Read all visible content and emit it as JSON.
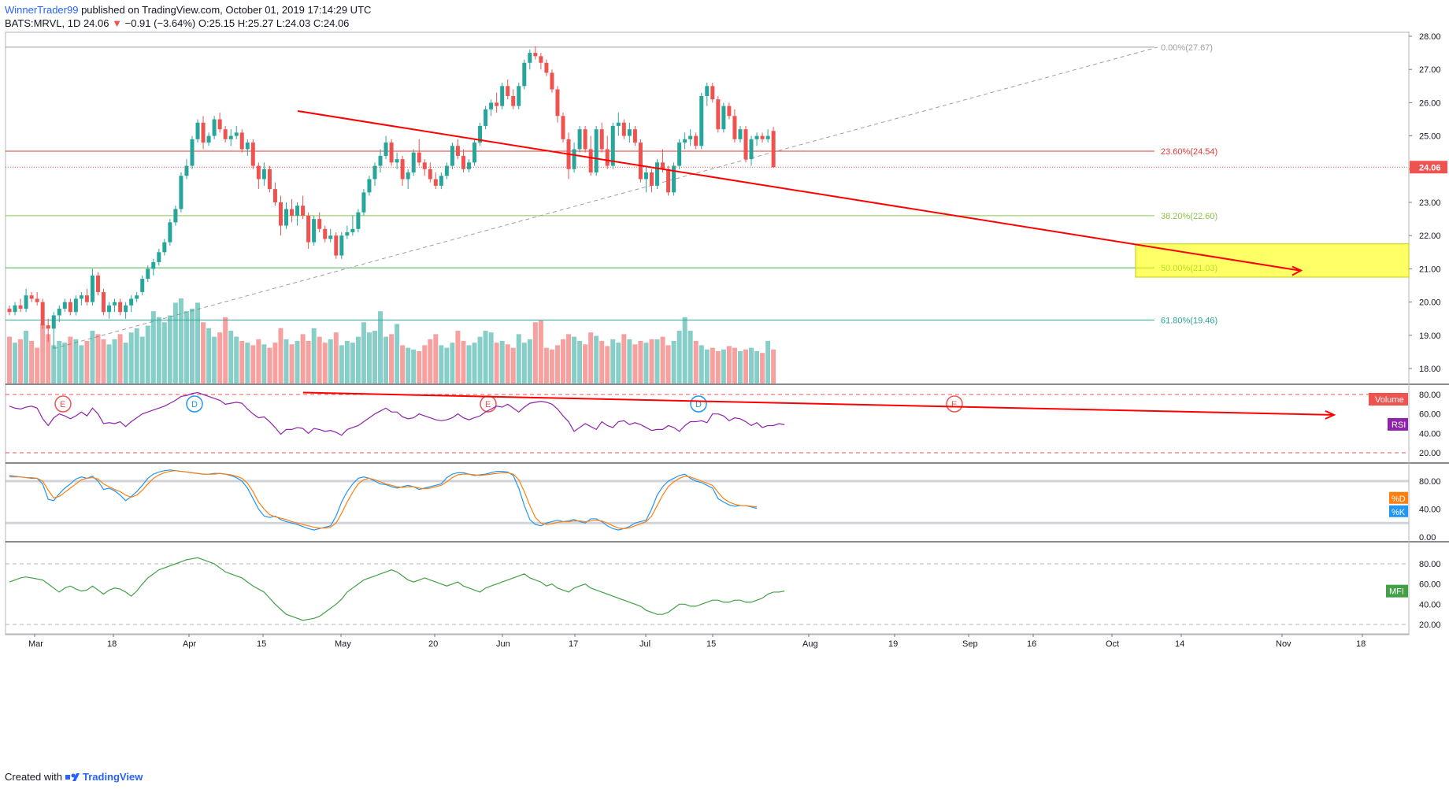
{
  "header": {
    "author": "WinnerTrader99",
    "published": "published on TradingView.com, October 01, 2019 17:14:29 UTC",
    "symbol": "BATS:MRVL, 1D",
    "last": "24.06",
    "change": "−0.91 (−3.64%)",
    "ohlc": "O:25.15 H:25.27 L:24.03 C:24.06"
  },
  "footer": {
    "created_with": "Created with",
    "brand": "TradingView"
  },
  "price_axis": {
    "ticks": [
      "28.00",
      "27.00",
      "26.00",
      "25.00",
      "24.00",
      "23.00",
      "22.00",
      "21.00",
      "20.00",
      "19.00",
      "18.00"
    ],
    "current_label": "24.06"
  },
  "fib_levels": [
    {
      "label": "0.00%(27.67)",
      "price": 27.67,
      "color": "#9e9e9e"
    },
    {
      "label": "23.60%(24.54)",
      "price": 24.54,
      "color": "#e53935"
    },
    {
      "label": "38.20%(22.60)",
      "price": 22.6,
      "color": "#8bc34a"
    },
    {
      "label": "50.00%(21.03)",
      "price": 21.03,
      "color": "#4caf50"
    },
    {
      "label": "61.80%(19.46)",
      "price": 19.46,
      "color": "#26a69a"
    }
  ],
  "indicators": {
    "volume_label": "Volume",
    "rsi_label": "RSI",
    "stoch_d_label": "%D",
    "stoch_k_label": "%K",
    "mfi_label": "MFI",
    "rsi_ticks": [
      "80.00",
      "60.00",
      "40.00",
      "20.00"
    ],
    "stoch_ticks": [
      "80.00",
      "40.00",
      "0.00"
    ],
    "mfi_ticks": [
      "80.00",
      "60.00",
      "40.00",
      "20.00"
    ]
  },
  "time_axis": [
    "Mar",
    "18",
    "Apr",
    "15",
    "May",
    "20",
    "Jun",
    "17",
    "Jul",
    "15",
    "Aug",
    "19",
    "Sep",
    "16",
    "Oct",
    "14",
    "Nov",
    "18"
  ],
  "event_markers": [
    "E",
    "D",
    "E",
    "D",
    "E"
  ],
  "colors": {
    "up": "#26a69a",
    "down": "#ef5350",
    "rsi": "#8e24aa",
    "stoch_k": "#2196f3",
    "stoch_d": "#ff7f0e",
    "mfi": "#43a047",
    "trendline": "#ff0000",
    "target_box": "#ffff00"
  },
  "chart_data": {
    "type": "candlestick",
    "symbol": "BATS:MRVL",
    "interval": "1D",
    "ylim": [
      17.6,
      28.2
    ],
    "candles_ohlc": [
      [
        19.8,
        19.9,
        19.6,
        19.7
      ],
      [
        19.7,
        20.0,
        19.6,
        19.9
      ],
      [
        19.9,
        20.1,
        19.7,
        19.8
      ],
      [
        19.8,
        20.4,
        19.7,
        20.2
      ],
      [
        20.2,
        20.3,
        20.0,
        20.1
      ],
      [
        20.1,
        20.3,
        19.9,
        20.0
      ],
      [
        20.0,
        20.1,
        19.2,
        19.3
      ],
      [
        19.3,
        19.5,
        18.8,
        19.2
      ],
      [
        19.2,
        19.7,
        18.6,
        19.6
      ],
      [
        19.6,
        19.9,
        19.4,
        19.8
      ],
      [
        19.8,
        20.1,
        19.7,
        20.0
      ],
      [
        20.0,
        20.1,
        19.6,
        19.7
      ],
      [
        19.7,
        20.2,
        19.6,
        20.1
      ],
      [
        20.1,
        20.3,
        19.9,
        20.2
      ],
      [
        20.2,
        20.4,
        19.9,
        20.0
      ],
      [
        20.0,
        21.0,
        19.9,
        20.8
      ],
      [
        20.8,
        20.9,
        20.2,
        20.3
      ],
      [
        20.3,
        20.4,
        19.6,
        19.7
      ],
      [
        19.7,
        20.0,
        19.5,
        19.9
      ],
      [
        19.9,
        20.1,
        19.7,
        20.0
      ],
      [
        20.0,
        20.1,
        19.6,
        19.7
      ],
      [
        19.7,
        20.0,
        19.5,
        19.9
      ],
      [
        19.9,
        20.2,
        19.7,
        20.1
      ],
      [
        20.1,
        20.3,
        20.0,
        20.2
      ],
      [
        20.3,
        20.8,
        20.2,
        20.7
      ],
      [
        20.7,
        21.1,
        20.6,
        21.0
      ],
      [
        21.0,
        21.3,
        20.8,
        21.2
      ],
      [
        21.2,
        21.6,
        21.1,
        21.5
      ],
      [
        21.5,
        21.9,
        21.4,
        21.8
      ],
      [
        21.8,
        22.5,
        21.7,
        22.4
      ],
      [
        22.4,
        22.9,
        22.3,
        22.8
      ],
      [
        22.8,
        23.9,
        22.7,
        23.8
      ],
      [
        23.8,
        24.3,
        23.7,
        24.1
      ],
      [
        24.1,
        25.0,
        24.0,
        24.9
      ],
      [
        24.9,
        25.5,
        24.8,
        25.4
      ],
      [
        25.4,
        25.6,
        24.6,
        24.8
      ],
      [
        24.8,
        25.1,
        24.7,
        25.0
      ],
      [
        25.0,
        25.6,
        24.9,
        25.5
      ],
      [
        25.5,
        25.7,
        25.1,
        25.2
      ],
      [
        25.2,
        25.3,
        24.8,
        24.9
      ],
      [
        24.9,
        25.2,
        24.7,
        25.0
      ],
      [
        25.0,
        25.3,
        24.9,
        25.1
      ],
      [
        25.1,
        25.2,
        24.5,
        24.6
      ],
      [
        24.6,
        24.9,
        24.4,
        24.8
      ],
      [
        24.8,
        24.9,
        24.0,
        24.1
      ],
      [
        24.1,
        24.2,
        23.4,
        23.7
      ],
      [
        23.7,
        24.2,
        23.5,
        24.0
      ],
      [
        24.0,
        24.1,
        23.3,
        23.4
      ],
      [
        23.4,
        23.6,
        22.9,
        23.0
      ],
      [
        23.0,
        23.2,
        22.0,
        22.3
      ],
      [
        22.3,
        23.0,
        22.2,
        22.8
      ],
      [
        22.8,
        23.1,
        22.4,
        22.6
      ],
      [
        22.6,
        23.0,
        22.3,
        22.9
      ],
      [
        22.9,
        23.2,
        22.5,
        22.6
      ],
      [
        22.6,
        22.7,
        21.6,
        21.8
      ],
      [
        21.8,
        22.6,
        21.7,
        22.5
      ],
      [
        22.5,
        22.7,
        22.1,
        22.2
      ],
      [
        22.2,
        22.3,
        21.8,
        21.9
      ],
      [
        21.9,
        22.2,
        21.8,
        22.0
      ],
      [
        22.0,
        22.1,
        21.3,
        21.4
      ],
      [
        21.4,
        22.1,
        21.3,
        22.0
      ],
      [
        22.0,
        22.3,
        21.9,
        22.1
      ],
      [
        22.1,
        22.6,
        22.0,
        22.2
      ],
      [
        22.2,
        22.8,
        22.1,
        22.7
      ],
      [
        22.7,
        23.4,
        22.6,
        23.3
      ],
      [
        23.3,
        23.8,
        23.2,
        23.7
      ],
      [
        23.7,
        24.2,
        23.5,
        24.1
      ],
      [
        24.1,
        24.6,
        23.9,
        24.4
      ],
      [
        24.4,
        25.0,
        24.3,
        24.8
      ],
      [
        24.8,
        24.9,
        24.1,
        24.2
      ],
      [
        24.2,
        24.5,
        24.0,
        24.3
      ],
      [
        24.3,
        24.4,
        23.5,
        23.7
      ],
      [
        23.7,
        24.0,
        23.4,
        23.9
      ],
      [
        23.9,
        24.6,
        23.8,
        24.5
      ],
      [
        24.5,
        24.9,
        24.1,
        24.2
      ],
      [
        24.2,
        24.3,
        23.8,
        24.0
      ],
      [
        24.0,
        24.2,
        23.6,
        23.7
      ],
      [
        23.7,
        23.9,
        23.4,
        23.5
      ],
      [
        23.5,
        23.9,
        23.4,
        23.8
      ],
      [
        23.8,
        24.2,
        23.7,
        24.1
      ],
      [
        24.1,
        24.8,
        24.0,
        24.7
      ],
      [
        24.7,
        24.9,
        24.3,
        24.4
      ],
      [
        24.4,
        24.6,
        23.9,
        24.0
      ],
      [
        24.0,
        24.3,
        23.9,
        24.2
      ],
      [
        24.2,
        24.9,
        24.1,
        24.8
      ],
      [
        24.8,
        25.4,
        24.7,
        25.3
      ],
      [
        25.3,
        25.9,
        25.2,
        25.8
      ],
      [
        25.8,
        26.1,
        25.6,
        26.0
      ],
      [
        26.0,
        26.3,
        25.7,
        25.9
      ],
      [
        25.9,
        26.6,
        25.8,
        26.5
      ],
      [
        26.5,
        26.7,
        26.1,
        26.2
      ],
      [
        26.2,
        26.4,
        25.8,
        25.9
      ],
      [
        25.9,
        26.6,
        25.8,
        26.5
      ],
      [
        26.5,
        27.3,
        26.4,
        27.2
      ],
      [
        27.2,
        27.6,
        27.0,
        27.5
      ],
      [
        27.5,
        27.7,
        27.3,
        27.4
      ],
      [
        27.4,
        27.5,
        27.0,
        27.2
      ],
      [
        27.2,
        27.3,
        26.8,
        26.9
      ],
      [
        26.9,
        27.0,
        26.3,
        26.4
      ],
      [
        26.4,
        26.5,
        25.4,
        25.6
      ],
      [
        25.6,
        25.7,
        24.8,
        24.9
      ],
      [
        24.9,
        25.1,
        23.7,
        24.0
      ],
      [
        24.0,
        24.8,
        23.9,
        24.6
      ],
      [
        24.6,
        25.3,
        24.5,
        25.2
      ],
      [
        25.2,
        25.3,
        24.5,
        24.6
      ],
      [
        24.6,
        25.0,
        23.8,
        23.9
      ],
      [
        23.9,
        25.3,
        23.8,
        25.2
      ],
      [
        25.2,
        25.4,
        24.5,
        24.6
      ],
      [
        24.6,
        25.0,
        24.0,
        24.1
      ],
      [
        24.1,
        25.4,
        24.0,
        25.3
      ],
      [
        25.3,
        25.7,
        25.0,
        25.4
      ],
      [
        25.4,
        25.5,
        24.9,
        25.0
      ],
      [
        25.0,
        25.4,
        24.8,
        25.2
      ],
      [
        25.2,
        25.3,
        24.7,
        24.8
      ],
      [
        24.8,
        24.9,
        23.6,
        23.7
      ],
      [
        23.7,
        24.1,
        23.3,
        23.9
      ],
      [
        23.9,
        24.0,
        23.3,
        23.5
      ],
      [
        23.5,
        24.3,
        23.4,
        24.2
      ],
      [
        24.2,
        24.6,
        23.9,
        24.0
      ],
      [
        24.0,
        24.1,
        23.2,
        23.3
      ],
      [
        23.3,
        24.2,
        23.2,
        24.1
      ],
      [
        24.1,
        24.9,
        24.0,
        24.8
      ],
      [
        24.8,
        25.1,
        24.6,
        24.9
      ],
      [
        24.9,
        25.2,
        24.7,
        25.0
      ],
      [
        25.0,
        25.1,
        24.6,
        24.7
      ],
      [
        24.7,
        26.3,
        24.6,
        26.2
      ],
      [
        26.2,
        26.6,
        25.9,
        26.5
      ],
      [
        26.5,
        26.6,
        26.0,
        26.1
      ],
      [
        26.1,
        26.2,
        25.1,
        25.2
      ],
      [
        25.2,
        26.0,
        25.1,
        25.9
      ],
      [
        25.9,
        26.0,
        25.5,
        25.6
      ],
      [
        25.6,
        25.8,
        24.8,
        24.9
      ],
      [
        24.9,
        25.3,
        24.8,
        25.2
      ],
      [
        25.2,
        25.3,
        24.2,
        24.3
      ],
      [
        24.3,
        25.0,
        24.1,
        24.9
      ],
      [
        24.9,
        25.1,
        24.7,
        25.0
      ],
      [
        25.0,
        25.1,
        24.8,
        24.9
      ],
      [
        24.9,
        25.2,
        24.8,
        25.0
      ],
      [
        25.15,
        25.27,
        24.03,
        24.06
      ]
    ],
    "volume_relative": [
      0.55,
      0.48,
      0.52,
      0.62,
      0.5,
      0.42,
      0.7,
      0.58,
      0.45,
      0.5,
      0.48,
      0.55,
      0.52,
      0.45,
      0.5,
      0.62,
      0.58,
      0.52,
      0.46,
      0.52,
      0.58,
      0.48,
      0.6,
      0.65,
      0.55,
      0.68,
      0.85,
      0.78,
      0.72,
      0.8,
      0.95,
      1.0,
      0.85,
      0.88,
      0.95,
      0.72,
      0.65,
      0.55,
      0.6,
      0.78,
      0.62,
      0.55,
      0.5,
      0.48,
      0.45,
      0.52,
      0.46,
      0.42,
      0.48,
      0.65,
      0.52,
      0.46,
      0.5,
      0.58,
      0.5,
      0.65,
      0.55,
      0.48,
      0.52,
      0.6,
      0.45,
      0.5,
      0.48,
      0.55,
      0.72,
      0.6,
      0.62,
      0.85,
      0.55,
      0.58,
      0.7,
      0.45,
      0.42,
      0.4,
      0.38,
      0.45,
      0.52,
      0.58,
      0.45,
      0.42,
      0.48,
      0.62,
      0.5,
      0.45,
      0.48,
      0.55,
      0.62,
      0.6,
      0.48,
      0.5,
      0.46,
      0.42,
      0.58,
      0.48,
      0.52,
      0.72,
      0.74,
      0.42,
      0.4,
      0.45,
      0.52,
      0.58,
      0.55,
      0.5,
      0.46,
      0.6,
      0.56,
      0.5,
      0.44,
      0.52,
      0.48,
      0.58,
      0.52,
      0.46,
      0.5,
      0.48,
      0.52,
      0.52,
      0.55,
      0.45,
      0.5,
      0.62,
      0.78,
      0.62,
      0.5,
      0.45,
      0.4,
      0.42,
      0.38,
      0.4,
      0.44,
      0.42,
      0.38,
      0.4,
      0.42,
      0.38,
      0.36,
      0.5,
      0.4,
      0.46,
      0.44,
      0.36,
      0.38,
      0.34,
      0.38
    ],
    "rsi": [
      68,
      66,
      65,
      67,
      68,
      66,
      55,
      48,
      56,
      60,
      58,
      55,
      58,
      62,
      58,
      66,
      60,
      50,
      51,
      50,
      52,
      47,
      52,
      56,
      60,
      62,
      64,
      66,
      68,
      71,
      74,
      78,
      79,
      81,
      82,
      80,
      78,
      76,
      74,
      70,
      71,
      72,
      71,
      65,
      60,
      56,
      57,
      52,
      46,
      39,
      44,
      44,
      46,
      45,
      40,
      45,
      44,
      42,
      43,
      41,
      38,
      44,
      46,
      48,
      52,
      56,
      60,
      63,
      66,
      62,
      62,
      57,
      55,
      56,
      60,
      58,
      56,
      54,
      53,
      54,
      56,
      60,
      56,
      54,
      56,
      58,
      62,
      65,
      68,
      67,
      70,
      66,
      62,
      67,
      71,
      72,
      73,
      72,
      70,
      65,
      58,
      52,
      42,
      46,
      50,
      47,
      44,
      52,
      48,
      46,
      52,
      53,
      49,
      51,
      49,
      46,
      43,
      44,
      44,
      48,
      46,
      42,
      48,
      52,
      52,
      53,
      51,
      60,
      60,
      58,
      53,
      56,
      55,
      52,
      48,
      51,
      46,
      48,
      48,
      50,
      49
    ],
    "stoch_k": [
      88,
      87,
      86,
      85,
      84,
      84,
      76,
      54,
      52,
      62,
      70,
      76,
      83,
      86,
      84,
      87,
      80,
      68,
      70,
      66,
      60,
      52,
      58,
      65,
      74,
      84,
      90,
      93,
      95,
      96,
      95,
      94,
      93,
      92,
      91,
      90,
      90,
      91,
      91,
      90,
      88,
      85,
      80,
      70,
      55,
      40,
      30,
      28,
      30,
      25,
      22,
      20,
      18,
      15,
      12,
      10,
      12,
      14,
      16,
      30,
      50,
      65,
      76,
      84,
      86,
      84,
      80,
      76,
      75,
      72,
      70,
      72,
      74,
      72,
      68,
      70,
      72,
      74,
      76,
      85,
      90,
      92,
      92,
      90,
      88,
      89,
      90,
      92,
      94,
      94,
      93,
      88,
      70,
      45,
      25,
      18,
      16,
      20,
      22,
      24,
      22,
      23,
      25,
      22,
      20,
      26,
      26,
      22,
      16,
      12,
      10,
      12,
      15,
      20,
      22,
      24,
      40,
      60,
      72,
      80,
      84,
      88,
      90,
      84,
      80,
      78,
      74,
      70,
      55,
      50,
      46,
      44,
      45,
      45,
      43,
      41
    ],
    "stoch_d": [
      86,
      86,
      86,
      85,
      85,
      84,
      80,
      67,
      56,
      58,
      64,
      70,
      76,
      82,
      84,
      85,
      83,
      76,
      72,
      68,
      65,
      60,
      57,
      60,
      67,
      76,
      84,
      89,
      92,
      94,
      95,
      94,
      93,
      92,
      91,
      90,
      90,
      90,
      91,
      90,
      89,
      87,
      84,
      77,
      65,
      50,
      40,
      32,
      29,
      27,
      25,
      22,
      20,
      18,
      16,
      14,
      13,
      13,
      14,
      20,
      34,
      50,
      64,
      76,
      82,
      84,
      82,
      79,
      76,
      74,
      72,
      71,
      72,
      72,
      70,
      69,
      70,
      72,
      74,
      79,
      85,
      89,
      90,
      90,
      89,
      88,
      89,
      90,
      91,
      92,
      92,
      90,
      82,
      65,
      45,
      28,
      20,
      18,
      19,
      21,
      22,
      22,
      23,
      23,
      22,
      23,
      24,
      23,
      20,
      16,
      13,
      12,
      13,
      16,
      19,
      22,
      30,
      45,
      60,
      72,
      79,
      84,
      87,
      86,
      83,
      80,
      77,
      74,
      64,
      55,
      50,
      47,
      45,
      45,
      44,
      43
    ],
    "mfi": [
      62,
      64,
      66,
      67,
      66,
      65,
      64,
      60,
      56,
      52,
      56,
      58,
      55,
      53,
      54,
      58,
      54,
      50,
      54,
      56,
      55,
      52,
      48,
      53,
      60,
      66,
      70,
      74,
      76,
      78,
      80,
      82,
      84,
      85,
      86,
      84,
      82,
      80,
      76,
      72,
      70,
      68,
      66,
      62,
      58,
      55,
      52,
      46,
      40,
      35,
      30,
      28,
      26,
      24,
      25,
      26,
      28,
      32,
      36,
      40,
      45,
      52,
      56,
      60,
      64,
      66,
      68,
      70,
      72,
      74,
      72,
      68,
      64,
      62,
      64,
      66,
      64,
      62,
      60,
      58,
      60,
      62,
      58,
      56,
      54,
      52,
      56,
      58,
      60,
      62,
      64,
      66,
      68,
      70,
      66,
      64,
      62,
      58,
      60,
      56,
      54,
      52,
      56,
      58,
      60,
      56,
      54,
      52,
      50,
      48,
      46,
      44,
      42,
      40,
      38,
      34,
      32,
      30,
      30,
      32,
      36,
      40,
      40,
      38,
      38,
      40,
      42,
      44,
      44,
      42,
      42,
      44,
      44,
      42,
      42,
      44,
      46,
      50,
      52,
      52,
      53
    ],
    "trendlines": [
      {
        "from_price": 25.75,
        "to_price": 20.95,
        "arrow": true
      },
      {
        "from_rsi": 82,
        "to_rsi": 59,
        "arrow": true
      }
    ],
    "target_zone": {
      "from": 20.75,
      "to": 21.75
    },
    "panes": [
      "price",
      "volume",
      "RSI",
      "Stochastic",
      "MFI"
    ]
  }
}
